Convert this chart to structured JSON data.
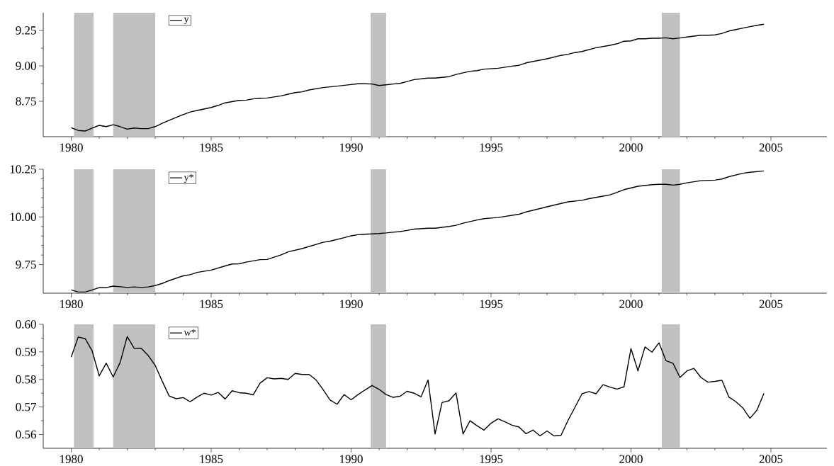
{
  "chart_data": [
    {
      "type": "line",
      "legend": "top left",
      "grid": false,
      "xlim": [
        1979,
        2007
      ],
      "ylim": [
        8.5,
        9.375
      ],
      "xticks": [
        1980,
        1985,
        1990,
        1995,
        2000,
        2005
      ],
      "yticks": [
        8.75,
        {
          "value": 9.0,
          "label": "9.00"
        },
        9.25
      ],
      "bands": [
        {
          "axis": "x",
          "from": 1980.1,
          "to": 1980.8,
          "color": "#c0c0c0"
        },
        {
          "axis": "x",
          "from": 1981.5,
          "to": 1983.0,
          "color": "#c0c0c0"
        },
        {
          "axis": "x",
          "from": 1990.7,
          "to": 1991.25,
          "color": "#c0c0c0"
        },
        {
          "axis": "x",
          "from": 2001.1,
          "to": 2001.75,
          "color": "#c0c0c0"
        }
      ],
      "series": [
        {
          "name": "y",
          "color": "#000000",
          "x": [
            1980.0,
            1980.25,
            1980.5,
            1980.75,
            1981.0,
            1981.25,
            1981.5,
            1981.75,
            1982.0,
            1982.25,
            1982.5,
            1982.75,
            1983.0,
            1983.25,
            1983.5,
            1984.0,
            1984.25,
            1984.5,
            1985.0,
            1985.25,
            1985.5,
            1986.0,
            1986.25,
            1986.5,
            1986.75,
            1987.0,
            1987.5,
            1987.75,
            1988.0,
            1988.25,
            1988.5,
            1989.0,
            1989.5,
            1990.0,
            1990.25,
            1990.5,
            1990.75,
            1991.0,
            1991.25,
            1991.5,
            1991.75,
            1992.0,
            1992.25,
            1992.75,
            1993.0,
            1993.5,
            1993.75,
            1994.25,
            1994.5,
            1994.75,
            1995.25,
            1995.75,
            1996.0,
            1996.25,
            1997.0,
            1997.5,
            1997.75,
            1998.0,
            1998.25,
            1998.75,
            1999.25,
            1999.5,
            1999.75,
            2000.0,
            2000.25,
            2000.5,
            2000.75,
            2001.0,
            2001.25,
            2001.5,
            2001.75,
            2002.0,
            2002.5,
            2002.75,
            2003.0,
            2003.25,
            2003.5,
            2003.75,
            2004.0,
            2004.25,
            2004.5,
            2004.75
          ],
          "values": [
            8.563,
            8.544,
            8.54,
            8.561,
            8.58,
            8.571,
            8.584,
            8.571,
            8.553,
            8.561,
            8.557,
            8.557,
            8.571,
            8.594,
            8.616,
            8.656,
            8.674,
            8.685,
            8.706,
            8.721,
            8.739,
            8.756,
            8.758,
            8.767,
            8.771,
            8.773,
            8.788,
            8.8,
            8.811,
            8.817,
            8.83,
            8.847,
            8.857,
            8.868,
            8.874,
            8.874,
            8.872,
            8.861,
            8.866,
            8.872,
            8.876,
            8.889,
            8.903,
            8.914,
            8.914,
            8.924,
            8.939,
            8.962,
            8.966,
            8.977,
            8.983,
            8.998,
            9.004,
            9.021,
            9.05,
            9.074,
            9.082,
            9.094,
            9.101,
            9.128,
            9.145,
            9.156,
            9.174,
            9.176,
            9.191,
            9.191,
            9.195,
            9.195,
            9.198,
            9.191,
            9.197,
            9.204,
            9.216,
            9.216,
            9.219,
            9.229,
            9.246,
            9.256,
            9.267,
            9.277,
            9.286,
            9.294
          ]
        }
      ]
    },
    {
      "type": "line",
      "legend": "top left",
      "grid": false,
      "xlim": [
        1979,
        2007
      ],
      "ylim": [
        9.6,
        10.25
      ],
      "xticks": [
        1980,
        1985,
        1990,
        1995,
        2000,
        2005
      ],
      "yticks": [
        9.75,
        {
          "value": 10.0,
          "label": "10.00"
        },
        10.25
      ],
      "bands": [
        {
          "axis": "x",
          "from": 1980.1,
          "to": 1980.8,
          "color": "#c0c0c0"
        },
        {
          "axis": "x",
          "from": 1981.5,
          "to": 1983.0,
          "color": "#c0c0c0"
        },
        {
          "axis": "x",
          "from": 1990.7,
          "to": 1991.25,
          "color": "#c0c0c0"
        },
        {
          "axis": "x",
          "from": 2001.1,
          "to": 2001.75,
          "color": "#c0c0c0"
        }
      ],
      "series": [
        {
          "name": "y*",
          "color": "#000000",
          "x": [
            1980.0,
            1980.25,
            1980.5,
            1980.75,
            1981.0,
            1981.25,
            1981.5,
            1981.75,
            1982.0,
            1982.25,
            1982.5,
            1982.75,
            1983.0,
            1983.25,
            1983.5,
            1984.0,
            1984.25,
            1984.5,
            1985.0,
            1985.5,
            1985.75,
            1986.0,
            1986.25,
            1986.75,
            1987.0,
            1987.5,
            1987.75,
            1988.25,
            1989.0,
            1989.25,
            1989.75,
            1990.0,
            1990.25,
            1990.5,
            1991.0,
            1991.25,
            1991.5,
            1991.75,
            1992.0,
            1992.25,
            1992.75,
            1993.0,
            1993.5,
            1993.75,
            1994.0,
            1994.5,
            1994.75,
            1995.0,
            1995.25,
            1996.0,
            1996.25,
            1997.0,
            1997.75,
            1998.25,
            1998.5,
            1999.0,
            1999.25,
            1999.5,
            1999.75,
            2000.25,
            2000.75,
            2001.0,
            2001.25,
            2001.5,
            2001.75,
            2002.0,
            2002.5,
            2003.0,
            2003.25,
            2003.5,
            2004.0,
            2004.25,
            2004.75
          ],
          "values": [
            9.617,
            9.606,
            9.606,
            9.617,
            9.629,
            9.629,
            9.637,
            9.634,
            9.63,
            9.633,
            9.63,
            9.633,
            9.64,
            9.651,
            9.666,
            9.691,
            9.697,
            9.709,
            9.721,
            9.743,
            9.753,
            9.754,
            9.763,
            9.776,
            9.777,
            9.801,
            9.817,
            9.834,
            9.867,
            9.873,
            9.891,
            9.901,
            9.907,
            9.909,
            9.913,
            9.916,
            9.92,
            9.923,
            9.929,
            9.936,
            9.941,
            9.941,
            9.95,
            9.956,
            9.967,
            9.984,
            9.991,
            9.994,
            9.997,
            10.014,
            10.026,
            10.053,
            10.079,
            10.087,
            10.096,
            10.109,
            10.116,
            10.129,
            10.143,
            10.161,
            10.169,
            10.171,
            10.171,
            10.167,
            10.171,
            10.179,
            10.19,
            10.193,
            10.199,
            10.211,
            10.229,
            10.234,
            10.241
          ]
        }
      ]
    },
    {
      "type": "line",
      "legend": "top left",
      "grid": false,
      "xlim": [
        1979,
        2007
      ],
      "ylim": [
        0.555,
        0.6
      ],
      "xticks": [
        1980,
        1985,
        1990,
        1995,
        2000,
        2005
      ],
      "yticks": [
        0.56,
        0.57,
        0.58,
        0.59,
        {
          "value": 0.6,
          "label": "0.60"
        }
      ],
      "bands": [
        {
          "axis": "x",
          "from": 1980.1,
          "to": 1980.8,
          "color": "#c0c0c0"
        },
        {
          "axis": "x",
          "from": 1981.5,
          "to": 1983.0,
          "color": "#c0c0c0"
        },
        {
          "axis": "x",
          "from": 1990.7,
          "to": 1991.25,
          "color": "#c0c0c0"
        },
        {
          "axis": "x",
          "from": 2001.1,
          "to": 2001.75,
          "color": "#c0c0c0"
        }
      ],
      "series": [
        {
          "name": "w*",
          "color": "#000000",
          "x": [
            1980.0,
            1980.25,
            1980.5,
            1980.75,
            1981.0,
            1981.25,
            1981.5,
            1981.75,
            1982.0,
            1982.25,
            1982.5,
            1982.75,
            1983.0,
            1983.25,
            1983.5,
            1983.75,
            1984.0,
            1984.25,
            1984.5,
            1984.75,
            1985.0,
            1985.25,
            1985.5,
            1985.75,
            1986.0,
            1986.25,
            1986.5,
            1986.75,
            1987.0,
            1987.25,
            1987.5,
            1987.75,
            1988.0,
            1988.25,
            1988.5,
            1988.75,
            1989.0,
            1989.25,
            1989.5,
            1989.75,
            1990.0,
            1990.25,
            1990.5,
            1990.75,
            1991.0,
            1991.25,
            1991.5,
            1991.75,
            1992.0,
            1992.25,
            1992.5,
            1992.75,
            1993.0,
            1993.25,
            1993.5,
            1993.75,
            1994.0,
            1994.25,
            1994.5,
            1994.75,
            1995.0,
            1995.25,
            1995.5,
            1995.75,
            1996.0,
            1996.25,
            1996.5,
            1996.75,
            1997.0,
            1997.25,
            1997.5,
            1997.75,
            1998.0,
            1998.25,
            1998.5,
            1998.75,
            1999.0,
            1999.25,
            1999.5,
            1999.75,
            2000.0,
            2000.25,
            2000.5,
            2000.75,
            2001.0,
            2001.25,
            2001.5,
            2001.75,
            2002.0,
            2002.25,
            2002.5,
            2002.75,
            2003.0,
            2003.25,
            2003.5,
            2003.75,
            2004.0,
            2004.25,
            2004.5,
            2004.75
          ],
          "values": [
            0.5881,
            0.5954,
            0.5948,
            0.5903,
            0.5813,
            0.5859,
            0.5809,
            0.5862,
            0.5956,
            0.5913,
            0.5913,
            0.5887,
            0.5851,
            0.5794,
            0.574,
            0.573,
            0.5734,
            0.5719,
            0.5736,
            0.575,
            0.5743,
            0.5753,
            0.5729,
            0.5759,
            0.5752,
            0.575,
            0.5744,
            0.5787,
            0.5806,
            0.5802,
            0.5804,
            0.58,
            0.5822,
            0.5818,
            0.5818,
            0.5798,
            0.5763,
            0.5725,
            0.571,
            0.5745,
            0.5726,
            0.5745,
            0.5762,
            0.5778,
            0.5764,
            0.5745,
            0.5735,
            0.5739,
            0.5757,
            0.575,
            0.5737,
            0.5798,
            0.5602,
            0.5716,
            0.5723,
            0.5751,
            0.5602,
            0.565,
            0.5632,
            0.5616,
            0.5641,
            0.5657,
            0.5646,
            0.5634,
            0.5627,
            0.5603,
            0.5616,
            0.5595,
            0.5613,
            0.5595,
            0.5597,
            0.5651,
            0.5699,
            0.5748,
            0.5756,
            0.5748,
            0.5781,
            0.5772,
            0.5765,
            0.5773,
            0.5912,
            0.5831,
            0.5918,
            0.5899,
            0.5933,
            0.5868,
            0.5859,
            0.5807,
            0.5831,
            0.584,
            0.5807,
            0.579,
            0.5793,
            0.5797,
            0.5736,
            0.5719,
            0.5696,
            0.5659,
            0.5688,
            0.5749
          ]
        }
      ]
    }
  ]
}
